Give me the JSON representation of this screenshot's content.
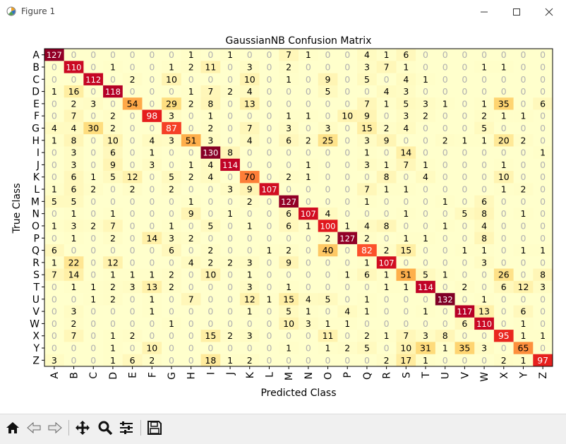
{
  "window": {
    "title": "Figure 1",
    "icon": "matplotlib-icon",
    "controls": [
      "minimize-icon",
      "maximize-icon",
      "close-icon"
    ]
  },
  "toolbar": {
    "buttons": [
      "home-icon",
      "back-arrow-icon",
      "forward-arrow-icon",
      "pan-move-icon",
      "zoom-magnifier-icon",
      "configure-subplots-icon",
      "save-disk-icon"
    ]
  },
  "chart_data": {
    "type": "heatmap",
    "title": "GaussianNB Confusion Matrix",
    "xlabel": "Predicted Class",
    "ylabel": "True Class",
    "labels": [
      "A",
      "B",
      "C",
      "D",
      "E",
      "F",
      "G",
      "H",
      "I",
      "J",
      "K",
      "L",
      "M",
      "N",
      "O",
      "P",
      "Q",
      "R",
      "S",
      "T",
      "U",
      "V",
      "W",
      "X",
      "Y",
      "Z"
    ],
    "colormap": "YlOrRd",
    "vmin": 0,
    "vmax": 132,
    "grid": false,
    "matrix": [
      [
        127,
        0,
        0,
        0,
        0,
        0,
        0,
        1,
        0,
        1,
        0,
        0,
        7,
        1,
        0,
        0,
        4,
        1,
        6,
        0,
        0,
        0,
        0,
        0,
        0,
        0
      ],
      [
        0,
        110,
        0,
        1,
        0,
        0,
        1,
        2,
        11,
        0,
        3,
        0,
        2,
        0,
        0,
        0,
        3,
        7,
        1,
        0,
        0,
        0,
        1,
        1,
        0,
        0
      ],
      [
        0,
        0,
        112,
        0,
        2,
        0,
        10,
        0,
        0,
        0,
        10,
        0,
        1,
        0,
        9,
        0,
        5,
        0,
        4,
        1,
        0,
        0,
        0,
        0,
        0,
        0
      ],
      [
        1,
        16,
        0,
        118,
        0,
        0,
        0,
        1,
        7,
        2,
        4,
        0,
        0,
        0,
        5,
        0,
        0,
        4,
        3,
        0,
        0,
        0,
        0,
        0,
        0,
        0
      ],
      [
        0,
        2,
        3,
        0,
        54,
        0,
        29,
        2,
        8,
        0,
        13,
        0,
        0,
        0,
        0,
        0,
        7,
        1,
        5,
        3,
        1,
        0,
        1,
        35,
        0,
        6
      ],
      [
        0,
        7,
        0,
        2,
        0,
        98,
        3,
        0,
        1,
        0,
        0,
        0,
        1,
        1,
        0,
        10,
        9,
        0,
        3,
        2,
        0,
        0,
        2,
        1,
        1,
        0
      ],
      [
        4,
        4,
        30,
        2,
        0,
        0,
        87,
        0,
        2,
        0,
        7,
        0,
        3,
        0,
        3,
        0,
        15,
        2,
        4,
        0,
        0,
        0,
        5,
        0,
        0,
        0
      ],
      [
        1,
        8,
        0,
        10,
        0,
        4,
        3,
        51,
        3,
        0,
        4,
        0,
        6,
        2,
        25,
        0,
        3,
        9,
        0,
        0,
        2,
        1,
        1,
        20,
        2,
        0
      ],
      [
        0,
        3,
        0,
        6,
        0,
        1,
        0,
        0,
        130,
        8,
        0,
        0,
        0,
        0,
        0,
        0,
        1,
        0,
        14,
        0,
        0,
        0,
        0,
        0,
        0,
        1
      ],
      [
        0,
        3,
        0,
        9,
        0,
        3,
        0,
        1,
        4,
        114,
        0,
        0,
        0,
        1,
        0,
        0,
        3,
        1,
        7,
        1,
        0,
        0,
        0,
        1,
        0,
        0
      ],
      [
        0,
        6,
        1,
        5,
        12,
        0,
        5,
        2,
        4,
        0,
        70,
        0,
        2,
        1,
        0,
        0,
        0,
        8,
        0,
        4,
        0,
        0,
        0,
        10,
        0,
        0
      ],
      [
        1,
        6,
        2,
        0,
        2,
        0,
        2,
        0,
        0,
        3,
        9,
        107,
        0,
        0,
        0,
        0,
        7,
        1,
        1,
        0,
        0,
        0,
        0,
        1,
        2,
        0
      ],
      [
        5,
        5,
        0,
        0,
        0,
        0,
        0,
        1,
        0,
        0,
        2,
        0,
        127,
        0,
        0,
        0,
        1,
        0,
        0,
        0,
        1,
        0,
        6,
        0,
        0,
        0
      ],
      [
        0,
        1,
        0,
        1,
        0,
        0,
        0,
        9,
        0,
        1,
        0,
        0,
        6,
        107,
        4,
        0,
        0,
        0,
        1,
        0,
        0,
        5,
        8,
        0,
        1,
        0
      ],
      [
        1,
        3,
        2,
        7,
        0,
        0,
        1,
        0,
        5,
        0,
        1,
        0,
        6,
        1,
        100,
        1,
        4,
        8,
        0,
        0,
        1,
        0,
        4,
        0,
        0,
        0
      ],
      [
        0,
        1,
        0,
        2,
        0,
        14,
        3,
        2,
        0,
        0,
        0,
        0,
        0,
        0,
        2,
        127,
        2,
        0,
        1,
        1,
        0,
        0,
        8,
        0,
        0,
        0
      ],
      [
        6,
        0,
        0,
        0,
        0,
        0,
        6,
        0,
        2,
        0,
        0,
        1,
        2,
        0,
        40,
        0,
        82,
        2,
        15,
        0,
        0,
        1,
        1,
        0,
        1,
        1
      ],
      [
        1,
        22,
        0,
        12,
        0,
        0,
        0,
        4,
        2,
        2,
        3,
        0,
        9,
        0,
        0,
        0,
        1,
        107,
        0,
        0,
        0,
        0,
        3,
        0,
        0,
        0
      ],
      [
        7,
        14,
        0,
        1,
        1,
        1,
        2,
        0,
        10,
        0,
        1,
        0,
        0,
        0,
        0,
        1,
        6,
        1,
        51,
        5,
        1,
        0,
        0,
        26,
        0,
        8
      ],
      [
        0,
        1,
        1,
        2,
        3,
        13,
        2,
        0,
        0,
        0,
        3,
        0,
        1,
        0,
        0,
        0,
        0,
        1,
        1,
        114,
        0,
        2,
        0,
        6,
        12,
        3
      ],
      [
        0,
        0,
        1,
        2,
        0,
        1,
        0,
        7,
        0,
        0,
        12,
        1,
        15,
        4,
        5,
        0,
        1,
        0,
        0,
        0,
        132,
        0,
        1,
        0,
        0,
        0
      ],
      [
        0,
        3,
        0,
        0,
        0,
        1,
        0,
        0,
        0,
        0,
        1,
        0,
        5,
        1,
        0,
        4,
        1,
        0,
        0,
        1,
        0,
        117,
        13,
        0,
        6,
        0
      ],
      [
        0,
        2,
        0,
        0,
        0,
        0,
        1,
        0,
        0,
        0,
        0,
        0,
        10,
        3,
        1,
        1,
        0,
        0,
        0,
        0,
        0,
        6,
        110,
        0,
        1,
        0
      ],
      [
        0,
        7,
        0,
        1,
        2,
        0,
        0,
        0,
        15,
        2,
        3,
        0,
        0,
        0,
        11,
        0,
        2,
        1,
        7,
        3,
        8,
        0,
        0,
        95,
        1,
        1
      ],
      [
        0,
        0,
        0,
        1,
        0,
        10,
        0,
        0,
        0,
        0,
        0,
        0,
        1,
        0,
        1,
        2,
        5,
        0,
        10,
        31,
        1,
        35,
        3,
        0,
        65,
        0
      ],
      [
        3,
        0,
        0,
        1,
        6,
        2,
        0,
        0,
        18,
        1,
        2,
        0,
        0,
        0,
        0,
        0,
        0,
        2,
        17,
        1,
        0,
        0,
        0,
        2,
        1,
        97
      ]
    ]
  }
}
